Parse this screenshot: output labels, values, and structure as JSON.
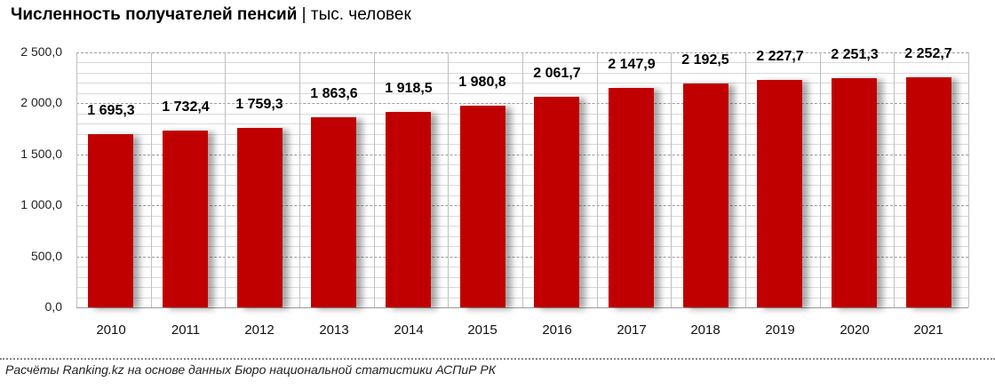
{
  "title": {
    "main": "Численность получателей пенсий",
    "separator": " | ",
    "unit": "тыс. человек"
  },
  "source": "Расчёты Ranking.kz на основе данных Бюро национальной статистики АСПиР РК",
  "colors": {
    "bar": "#c00000"
  },
  "chart_data": {
    "type": "bar",
    "title": "Численность получателей пенсий | тыс. человек",
    "xlabel": "",
    "ylabel": "тыс. человек",
    "categories": [
      "2010",
      "2011",
      "2012",
      "2013",
      "2014",
      "2015",
      "2016",
      "2017",
      "2018",
      "2019",
      "2020",
      "2021"
    ],
    "values": [
      1695.3,
      1732.4,
      1759.3,
      1863.6,
      1918.5,
      1980.8,
      2061.7,
      2147.9,
      2192.5,
      2227.7,
      2251.3,
      2252.7
    ],
    "value_labels": [
      "1 695,3",
      "1 732,4",
      "1 759,3",
      "1 863,6",
      "1 918,5",
      "1 980,8",
      "2 061,7",
      "2 147,9",
      "2 192,5",
      "2 227,7",
      "2 251,3",
      "2 252,7"
    ],
    "ylim": [
      0,
      2500
    ],
    "yticks": [
      0,
      500,
      1000,
      1500,
      2000,
      2500
    ],
    "ytick_labels": [
      "0,0",
      "500,0",
      "1 000,0",
      "1 500,0",
      "2 000,0",
      "2 500,0"
    ],
    "grid": true,
    "legend": "none"
  }
}
